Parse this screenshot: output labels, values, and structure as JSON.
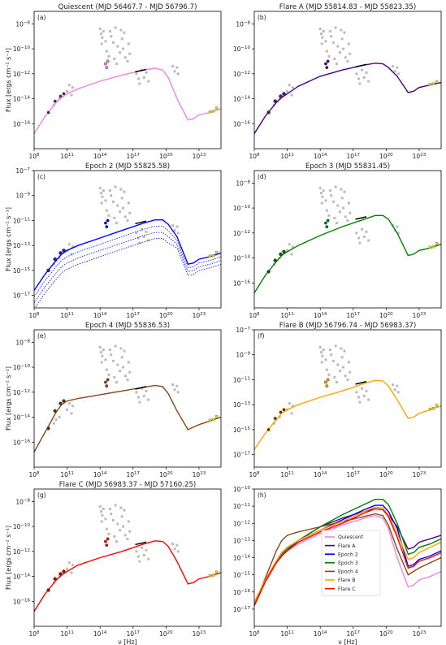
{
  "figure": {
    "ylabel": "Flux [ergs cm⁻² s⁻¹]",
    "xlabel": "ν [Hz]"
  },
  "legend": [
    "Quiescent",
    "Flare A",
    "Epoch 2",
    "Epoch 3",
    "Epoch 4",
    "Flare B",
    "Flare C"
  ],
  "colors": {
    "Quiescent": "#ee82ee",
    "Flare A": "#4b0082",
    "Epoch 2": "#0000ff",
    "Epoch 3": "#008000",
    "Epoch 4": "#8b4513",
    "Flare B": "#ffa500",
    "Flare C": "#ff0000",
    "archival": "#bbbbbb"
  },
  "chart_data": [
    {
      "panel_label": "(a)",
      "title": "Quiescent (MJD 56467.7 - MJD 56796.7)",
      "type": "line",
      "xscale": "log",
      "yscale": "log",
      "xlim": [
        100000000.0,
        1e+25
      ],
      "ylim": [
        1e-18,
        1e-07
      ],
      "xticks": [
        "10^8",
        "10^11",
        "10^14",
        "10^17",
        "10^20",
        "10^23"
      ],
      "yticks": [
        "10^-16",
        "10^-14",
        "10^-12",
        "10^-10",
        "10^-8"
      ],
      "ylabel": "Flux [ergs cm⁻² s⁻¹]",
      "xlabel": "",
      "series": [
        {
          "name": "Quiescent",
          "color": "#ee82ee",
          "x": [
            8,
            9,
            10,
            10.5,
            11,
            12,
            14,
            16,
            18,
            19,
            19.7,
            20.2,
            21,
            22,
            22.5,
            23,
            24,
            25
          ],
          "y": [
            -16.8,
            -15.4,
            -14.3,
            -13.9,
            -13.6,
            -13.2,
            -12.6,
            -12.1,
            -11.7,
            -11.55,
            -11.7,
            -12.3,
            -14.0,
            -15.7,
            -15.6,
            -15.3,
            -15.1,
            -14.8
          ]
        }
      ]
    },
    {
      "panel_label": "(b)",
      "title": "Flare A (MJD 55814.83 - MJD 55823.35)",
      "type": "line",
      "xscale": "log",
      "yscale": "log",
      "xlim": [
        100000000.0,
        1e+25
      ],
      "ylim": [
        1e-18,
        1e-07
      ],
      "xticks": [
        "10^8",
        "10^11",
        "10^14",
        "10^17",
        "10^20",
        "10^23"
      ],
      "yticks": [
        "10^-16",
        "10^-14",
        "10^-12",
        "10^-10",
        "10^-8"
      ],
      "ylabel": "",
      "xlabel": "",
      "series": [
        {
          "name": "Flare A",
          "color": "#4b0082",
          "x": [
            8,
            9,
            10,
            10.5,
            11,
            12,
            14,
            16,
            18,
            19,
            19.7,
            20.2,
            21,
            22,
            22.5,
            23,
            24,
            25
          ],
          "y": [
            -16.8,
            -15.4,
            -14.3,
            -13.9,
            -13.6,
            -13.0,
            -12.2,
            -11.7,
            -11.3,
            -11.15,
            -11.2,
            -11.5,
            -12.2,
            -13.5,
            -13.4,
            -13.1,
            -12.9,
            -12.7
          ]
        }
      ]
    },
    {
      "panel_label": "(c)",
      "title": "Epoch 2 (MJD 55825.58)",
      "type": "line",
      "xscale": "log",
      "yscale": "log",
      "xlim": [
        100000000.0,
        1e+25
      ],
      "ylim": [
        1e-18,
        1e-07
      ],
      "xticks": [
        "10^8",
        "10^11",
        "10^14",
        "10^17",
        "10^20",
        "10^23"
      ],
      "yticks": [
        "10^-17",
        "10^-15",
        "10^-13",
        "10^-11",
        "10^-9",
        "10^-7"
      ],
      "ylabel": "Flux [ergs cm⁻² s⁻¹]",
      "xlabel": "",
      "series": [
        {
          "name": "Epoch 2",
          "color": "#0000ff",
          "x": [
            8,
            9,
            10,
            10.5,
            11,
            12,
            14,
            16,
            18,
            19,
            19.7,
            20.2,
            21,
            22,
            22.5,
            23,
            24,
            25
          ],
          "y": [
            -16.6,
            -15.3,
            -14.2,
            -13.7,
            -13.4,
            -13.0,
            -12.4,
            -11.8,
            -11.2,
            -10.95,
            -10.95,
            -11.3,
            -12.3,
            -14.5,
            -14.4,
            -14.1,
            -13.9,
            -13.6
          ]
        }
      ]
    },
    {
      "panel_label": "(d)",
      "title": "Epoch 3 (MJD 55831.45)",
      "type": "line",
      "xscale": "log",
      "yscale": "log",
      "xlim": [
        100000000.0,
        1e+25
      ],
      "ylim": [
        1e-18,
        1e-07
      ],
      "xticks": [
        "10^8",
        "10^11",
        "10^14",
        "10^17",
        "10^20",
        "10^23"
      ],
      "yticks": [
        "10^-16",
        "10^-14",
        "10^-12",
        "10^-10",
        "10^-8"
      ],
      "ylabel": "",
      "xlabel": "",
      "series": [
        {
          "name": "Epoch 3",
          "color": "#008000",
          "x": [
            8,
            9,
            10,
            10.5,
            11,
            12,
            14,
            16,
            18,
            19,
            19.7,
            20.2,
            21,
            22,
            22.5,
            23,
            24,
            25
          ],
          "y": [
            -16.8,
            -15.4,
            -14.3,
            -13.8,
            -13.5,
            -13.0,
            -12.2,
            -11.5,
            -10.9,
            -10.6,
            -10.6,
            -10.9,
            -12.0,
            -13.8,
            -13.7,
            -13.4,
            -13.2,
            -12.9
          ]
        }
      ]
    },
    {
      "panel_label": "(e)",
      "title": "Epoch 4 (MJD 55836.53)",
      "type": "line",
      "xscale": "log",
      "yscale": "log",
      "xlim": [
        100000000.0,
        1e+25
      ],
      "ylim": [
        1e-18,
        1e-07
      ],
      "xticks": [
        "10^8",
        "10^11",
        "10^14",
        "10^17",
        "10^20",
        "10^23"
      ],
      "yticks": [
        "10^-16",
        "10^-14",
        "10^-12",
        "10^-10",
        "10^-8"
      ],
      "ylabel": "Flux [ergs cm⁻² s⁻¹]",
      "xlabel": "",
      "series": [
        {
          "name": "Epoch 4",
          "color": "#8b4513",
          "x": [
            8,
            9,
            10,
            10.5,
            11,
            12,
            14,
            16,
            18,
            19,
            19.7,
            20.2,
            21,
            22,
            22.5,
            23,
            24,
            25
          ],
          "y": [
            -16.8,
            -15.2,
            -13.6,
            -13.0,
            -12.7,
            -12.5,
            -12.2,
            -11.9,
            -11.6,
            -11.45,
            -11.55,
            -12.1,
            -13.5,
            -15.0,
            -14.8,
            -14.6,
            -14.3,
            -14.0
          ]
        }
      ]
    },
    {
      "panel_label": "(f)",
      "title": "Flare B (MJD 56796.74 - MJD 56983.37)",
      "type": "line",
      "xscale": "log",
      "yscale": "log",
      "xlim": [
        100000000.0,
        1e+25
      ],
      "ylim": [
        1e-18,
        1e-07
      ],
      "xticks": [
        "10^8",
        "10^11",
        "10^14",
        "10^17",
        "10^20",
        "10^23"
      ],
      "yticks": [
        "10^-17",
        "10^-15",
        "10^-13",
        "10^-11",
        "10^-9",
        "10^-7"
      ],
      "ylabel": "",
      "xlabel": "",
      "series": [
        {
          "name": "Flare B",
          "color": "#ffa500",
          "x": [
            8,
            9,
            10,
            10.5,
            11,
            12,
            14,
            16,
            18,
            19,
            19.7,
            20.2,
            21,
            22,
            22.5,
            23,
            24,
            25
          ],
          "y": [
            -16.6,
            -15.3,
            -14.2,
            -13.7,
            -13.4,
            -13.0,
            -12.4,
            -11.9,
            -11.3,
            -11.05,
            -11.1,
            -11.5,
            -12.6,
            -14.1,
            -14.0,
            -13.7,
            -13.4,
            -13.1
          ]
        }
      ]
    },
    {
      "panel_label": "(g)",
      "title": "Flare C (MJD 56983.37 - MJD 57160.25)",
      "type": "line",
      "xscale": "log",
      "yscale": "log",
      "xlim": [
        100000000.0,
        1e+25
      ],
      "ylim": [
        1e-18,
        1e-07
      ],
      "xticks": [
        "10^8",
        "10^11",
        "10^14",
        "10^17",
        "10^20",
        "10^23"
      ],
      "yticks": [
        "10^-16",
        "10^-14",
        "10^-12",
        "10^-10",
        "10^-8"
      ],
      "ylabel": "Flux [ergs cm⁻² s⁻¹]",
      "xlabel": "ν [Hz]",
      "series": [
        {
          "name": "Flare C",
          "color": "#ff0000",
          "x": [
            8,
            9,
            10,
            10.5,
            11,
            12,
            14,
            16,
            18,
            19,
            19.7,
            20.2,
            21,
            22,
            22.5,
            23,
            24,
            25
          ],
          "y": [
            -16.8,
            -15.4,
            -14.3,
            -13.9,
            -13.6,
            -13.1,
            -12.5,
            -12.0,
            -11.4,
            -11.15,
            -11.2,
            -11.6,
            -12.8,
            -14.6,
            -14.5,
            -14.2,
            -14.0,
            -13.7
          ]
        }
      ]
    },
    {
      "panel_label": "(h)",
      "title": "",
      "type": "line",
      "xscale": "log",
      "yscale": "log",
      "xlim": [
        100000000.0,
        1e+25
      ],
      "ylim": [
        1e-18,
        1e-10
      ],
      "xticks": [
        "10^8",
        "10^11",
        "10^14",
        "10^17",
        "10^20",
        "10^23"
      ],
      "yticks": [
        "10^-17",
        "10^-16",
        "10^-15",
        "10^-14",
        "10^-13",
        "10^-12",
        "10^-11",
        "10^-10"
      ],
      "ylabel": "",
      "xlabel": "ν [Hz]",
      "legend_position": "lower center",
      "series": [
        {
          "name": "Quiescent",
          "color": "#ee82ee",
          "x": [
            8,
            9,
            10,
            10.5,
            11,
            12,
            14,
            16,
            18,
            19,
            19.7,
            20.2,
            21,
            22,
            22.5,
            23,
            24,
            25
          ],
          "y": [
            -16.8,
            -15.4,
            -14.3,
            -13.9,
            -13.6,
            -13.2,
            -12.6,
            -12.1,
            -11.7,
            -11.55,
            -11.7,
            -12.3,
            -14.0,
            -15.7,
            -15.6,
            -15.3,
            -15.1,
            -14.8
          ]
        },
        {
          "name": "Flare A",
          "color": "#4b0082",
          "x": [
            8,
            9,
            10,
            10.5,
            11,
            12,
            14,
            16,
            18,
            19,
            19.7,
            20.2,
            21,
            22,
            22.5,
            23,
            24,
            25
          ],
          "y": [
            -16.8,
            -15.4,
            -14.3,
            -13.9,
            -13.6,
            -13.0,
            -12.2,
            -11.7,
            -11.3,
            -11.15,
            -11.2,
            -11.5,
            -12.2,
            -13.5,
            -13.4,
            -13.1,
            -12.9,
            -12.7
          ]
        },
        {
          "name": "Epoch 2",
          "color": "#0000ff",
          "x": [
            8,
            9,
            10,
            10.5,
            11,
            12,
            14,
            16,
            18,
            19,
            19.7,
            20.2,
            21,
            22,
            22.5,
            23,
            24,
            25
          ],
          "y": [
            -16.6,
            -15.3,
            -14.2,
            -13.7,
            -13.4,
            -13.0,
            -12.4,
            -11.8,
            -11.2,
            -10.95,
            -10.95,
            -11.3,
            -12.3,
            -14.5,
            -14.4,
            -14.1,
            -13.9,
            -13.6
          ]
        },
        {
          "name": "Epoch 3",
          "color": "#008000",
          "x": [
            8,
            9,
            10,
            10.5,
            11,
            12,
            14,
            16,
            18,
            19,
            19.7,
            20.2,
            21,
            22,
            22.5,
            23,
            24,
            25
          ],
          "y": [
            -16.8,
            -15.4,
            -14.3,
            -13.8,
            -13.5,
            -13.0,
            -12.2,
            -11.5,
            -10.9,
            -10.6,
            -10.6,
            -10.9,
            -12.0,
            -13.8,
            -13.7,
            -13.4,
            -13.2,
            -12.9
          ]
        },
        {
          "name": "Epoch 4",
          "color": "#8b4513",
          "x": [
            8,
            9,
            10,
            10.5,
            11,
            12,
            14,
            16,
            18,
            19,
            19.7,
            20.2,
            21,
            22,
            22.5,
            23,
            24,
            25
          ],
          "y": [
            -16.8,
            -15.2,
            -13.6,
            -13.0,
            -12.7,
            -12.5,
            -12.2,
            -11.9,
            -11.6,
            -11.45,
            -11.55,
            -12.1,
            -13.5,
            -15.0,
            -14.8,
            -14.6,
            -14.3,
            -14.0
          ]
        },
        {
          "name": "Flare B",
          "color": "#ffa500",
          "x": [
            8,
            9,
            10,
            10.5,
            11,
            12,
            14,
            16,
            18,
            19,
            19.7,
            20.2,
            21,
            22,
            22.5,
            23,
            24,
            25
          ],
          "y": [
            -16.6,
            -15.3,
            -14.2,
            -13.7,
            -13.4,
            -13.0,
            -12.4,
            -11.9,
            -11.3,
            -11.05,
            -11.1,
            -11.5,
            -12.6,
            -14.1,
            -14.0,
            -13.7,
            -13.4,
            -13.1
          ]
        },
        {
          "name": "Flare C",
          "color": "#ff0000",
          "x": [
            8,
            9,
            10,
            10.5,
            11,
            12,
            14,
            16,
            18,
            19,
            19.7,
            20.2,
            21,
            22,
            22.5,
            23,
            24,
            25
          ],
          "y": [
            -16.8,
            -15.4,
            -14.3,
            -13.9,
            -13.6,
            -13.1,
            -12.5,
            -12.0,
            -11.4,
            -11.15,
            -11.2,
            -11.6,
            -12.8,
            -14.6,
            -14.5,
            -14.2,
            -14.0,
            -13.7
          ]
        }
      ]
    }
  ]
}
